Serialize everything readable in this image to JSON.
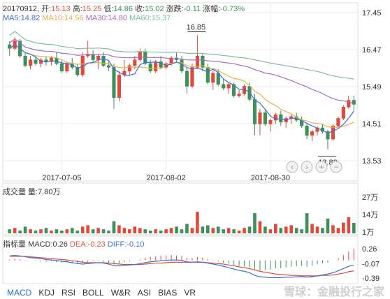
{
  "header": {
    "date": "20170912,",
    "open_label": "开:",
    "open": "15.13",
    "high_label": "高:",
    "high": "15.25",
    "low_label": "低:",
    "low": "14.86",
    "close_label": "收:",
    "close": "15.02",
    "change_label": "涨跌:",
    "change": "-0.11",
    "pct_label": "涨幅:",
    "pct": "-0.73%"
  },
  "ma_legend": {
    "ma5": "MA5:14.82",
    "ma10": "MA10:14.56",
    "ma30": "MA30:14.80",
    "ma60": "MA60:15.37"
  },
  "volume_panel": {
    "label": "成交量 量:7.80万"
  },
  "macd_panel": {
    "label": "指标量",
    "macd": "MACD:0.26",
    "dea": "DEA:-0.23",
    "diff": "DIFF:-0.10"
  },
  "tabs": [
    "MACD",
    "KDJ",
    "RSI",
    "BOLL",
    "W&R",
    "ASI",
    "BIAS",
    "VR"
  ],
  "active_tab": "MACD",
  "watermark": "雪球：金融投行之家",
  "colors": {
    "up": "#e04a3a",
    "down": "#3f8f5a",
    "ma5": "#3b6fd6",
    "ma10": "#e8b04a",
    "ma30": "#a36bc9",
    "ma60": "#7fbfa0",
    "info": "#e0503c"
  },
  "chart_data": [
    {
      "type": "candlestick",
      "x_tick_labels": [
        "2017-07-05",
        "2017-08-02",
        "2017-08-30"
      ],
      "y_tick_labels": [
        "17.45",
        "16.47",
        "15.49",
        "14.51",
        "13.53"
      ],
      "ylim": [
        13.53,
        17.45
      ],
      "annotations": {
        "max": "16.85",
        "min": "13.83"
      },
      "candles": [
        [
          16.6,
          16.7,
          16.3,
          16.5
        ],
        [
          16.5,
          16.8,
          16.45,
          16.7
        ],
        [
          16.7,
          16.75,
          16.25,
          16.3
        ],
        [
          16.3,
          16.4,
          16.0,
          16.05
        ],
        [
          16.05,
          16.3,
          15.95,
          16.2
        ],
        [
          16.2,
          16.3,
          16.05,
          16.1
        ],
        [
          16.1,
          16.25,
          16.0,
          16.2
        ],
        [
          16.2,
          16.3,
          16.05,
          16.15
        ],
        [
          16.15,
          16.3,
          16.05,
          16.25
        ],
        [
          16.25,
          16.4,
          16.05,
          16.1
        ],
        [
          16.1,
          16.2,
          15.85,
          15.9
        ],
        [
          15.9,
          16.15,
          15.85,
          16.1
        ],
        [
          16.1,
          16.25,
          15.95,
          16.0
        ],
        [
          16.0,
          16.1,
          15.75,
          15.8
        ],
        [
          15.8,
          16.4,
          15.75,
          16.3
        ],
        [
          16.3,
          16.7,
          16.25,
          16.35
        ],
        [
          16.35,
          16.45,
          16.15,
          16.2
        ],
        [
          16.2,
          16.35,
          15.95,
          16.3
        ],
        [
          16.3,
          16.4,
          16.0,
          16.05
        ],
        [
          16.05,
          16.15,
          15.9,
          16.0
        ],
        [
          16.0,
          16.1,
          14.9,
          15.2
        ],
        [
          15.2,
          15.9,
          15.1,
          15.8
        ],
        [
          15.8,
          16.2,
          15.75,
          15.9
        ],
        [
          15.9,
          16.1,
          15.8,
          16.05
        ],
        [
          16.05,
          16.3,
          15.95,
          16.2
        ],
        [
          16.2,
          16.5,
          16.15,
          16.4
        ],
        [
          16.4,
          16.5,
          16.05,
          16.1
        ],
        [
          16.1,
          16.2,
          15.85,
          15.9
        ],
        [
          15.9,
          16.2,
          15.85,
          16.15
        ],
        [
          16.15,
          16.3,
          15.95,
          16.0
        ],
        [
          16.0,
          16.15,
          15.95,
          16.1
        ],
        [
          16.1,
          16.3,
          16.05,
          16.25
        ],
        [
          16.25,
          16.4,
          16.15,
          16.2
        ],
        [
          16.2,
          16.3,
          15.85,
          15.9
        ],
        [
          15.9,
          16.0,
          15.3,
          15.5
        ],
        [
          15.5,
          16.1,
          15.45,
          16.0
        ],
        [
          16.0,
          16.85,
          15.95,
          16.3
        ],
        [
          16.3,
          16.35,
          15.9,
          16.0
        ],
        [
          16.0,
          16.1,
          15.55,
          15.6
        ],
        [
          15.6,
          15.9,
          15.4,
          15.85
        ],
        [
          15.85,
          15.95,
          15.5,
          15.55
        ],
        [
          15.55,
          15.7,
          15.4,
          15.45
        ],
        [
          15.45,
          15.6,
          15.3,
          15.55
        ],
        [
          15.55,
          15.6,
          15.2,
          15.25
        ],
        [
          15.25,
          15.4,
          15.2,
          15.3
        ],
        [
          15.3,
          15.55,
          15.25,
          15.5
        ],
        [
          15.5,
          15.6,
          15.1,
          15.15
        ],
        [
          15.15,
          15.3,
          14.2,
          14.5
        ],
        [
          14.5,
          14.9,
          14.2,
          14.8
        ],
        [
          14.8,
          14.9,
          14.45,
          14.5
        ],
        [
          14.5,
          14.65,
          14.3,
          14.6
        ],
        [
          14.6,
          14.8,
          14.5,
          14.75
        ],
        [
          14.75,
          14.85,
          14.45,
          14.55
        ],
        [
          14.55,
          14.7,
          14.4,
          14.65
        ],
        [
          14.65,
          14.75,
          14.5,
          14.7
        ],
        [
          14.7,
          14.8,
          14.55,
          14.6
        ],
        [
          14.6,
          14.7,
          14.4,
          14.45
        ],
        [
          14.45,
          14.5,
          14.1,
          14.2
        ],
        [
          14.2,
          14.35,
          14.05,
          14.3
        ],
        [
          14.3,
          14.45,
          14.2,
          14.4
        ],
        [
          14.4,
          14.5,
          14.25,
          14.3
        ],
        [
          14.3,
          14.35,
          13.83,
          14.1
        ],
        [
          14.1,
          14.5,
          14.05,
          14.45
        ],
        [
          14.45,
          14.7,
          14.4,
          14.65
        ],
        [
          14.65,
          15.0,
          14.6,
          14.95
        ],
        [
          14.95,
          15.25,
          14.9,
          15.13
        ],
        [
          15.13,
          15.25,
          14.86,
          15.02
        ]
      ]
    },
    {
      "type": "bar",
      "title": "volume",
      "y_tick_labels": [
        "27万",
        "14万",
        "1万"
      ],
      "ylim": [
        0,
        27
      ],
      "values": [
        3,
        4,
        2,
        5,
        3,
        2,
        3,
        4,
        2,
        3,
        2,
        3,
        4,
        2,
        5,
        6,
        3,
        4,
        3,
        2,
        9,
        6,
        4,
        3,
        5,
        4,
        3,
        2,
        3,
        2,
        3,
        4,
        5,
        3,
        7,
        4,
        16,
        5,
        6,
        4,
        5,
        3,
        4,
        3,
        2,
        4,
        5,
        15,
        9,
        5,
        3,
        7,
        4,
        5,
        6,
        4,
        3,
        15,
        7,
        5,
        4,
        11,
        6,
        4,
        8,
        12,
        7.8
      ],
      "colors_up": true
    },
    {
      "type": "bar",
      "title": "MACD",
      "y_tick_labels": [
        "0.26",
        "-0.07",
        "-0.39"
      ],
      "ylim": [
        -0.45,
        0.32
      ],
      "values": [
        0.02,
        0.04,
        0.03,
        0.01,
        0.0,
        -0.01,
        -0.02,
        -0.03,
        -0.02,
        -0.04,
        -0.05,
        -0.04,
        -0.06,
        -0.07,
        -0.05,
        -0.03,
        -0.02,
        -0.01,
        -0.03,
        -0.05,
        -0.09,
        -0.06,
        -0.04,
        -0.02,
        0.0,
        0.03,
        0.06,
        0.08,
        0.09,
        0.1,
        0.11,
        0.12,
        0.11,
        0.1,
        0.06,
        0.05,
        0.08,
        0.06,
        0.03,
        0.01,
        -0.02,
        -0.05,
        -0.07,
        -0.1,
        -0.12,
        -0.13,
        -0.15,
        -0.2,
        -0.22,
        -0.21,
        -0.2,
        -0.18,
        -0.17,
        -0.15,
        -0.14,
        -0.13,
        -0.12,
        -0.14,
        -0.11,
        -0.08,
        -0.06,
        -0.05,
        0.0,
        0.05,
        0.12,
        0.2,
        0.26
      ],
      "diff": [
        0.1,
        0.11,
        0.1,
        0.08,
        0.06,
        0.05,
        0.04,
        0.02,
        0.01,
        0.0,
        -0.02,
        -0.03,
        -0.05,
        -0.07,
        -0.08,
        -0.07,
        -0.06,
        -0.05,
        -0.06,
        -0.08,
        -0.12,
        -0.12,
        -0.11,
        -0.1,
        -0.09,
        -0.07,
        -0.05,
        -0.03,
        -0.02,
        -0.01,
        0.0,
        0.01,
        0.01,
        0.0,
        -0.03,
        -0.04,
        -0.03,
        -0.04,
        -0.06,
        -0.08,
        -0.1,
        -0.13,
        -0.16,
        -0.19,
        -0.22,
        -0.24,
        -0.27,
        -0.33,
        -0.36,
        -0.37,
        -0.38,
        -0.38,
        -0.38,
        -0.37,
        -0.37,
        -0.36,
        -0.36,
        -0.37,
        -0.36,
        -0.34,
        -0.32,
        -0.3,
        -0.27,
        -0.23,
        -0.18,
        -0.13,
        -0.1
      ],
      "dea": [
        0.09,
        0.09,
        0.09,
        0.09,
        0.08,
        0.07,
        0.06,
        0.05,
        0.04,
        0.03,
        0.02,
        0.01,
        -0.01,
        -0.02,
        -0.04,
        -0.05,
        -0.05,
        -0.05,
        -0.05,
        -0.06,
        -0.07,
        -0.08,
        -0.09,
        -0.09,
        -0.09,
        -0.09,
        -0.08,
        -0.07,
        -0.06,
        -0.06,
        -0.05,
        -0.04,
        -0.04,
        -0.04,
        -0.04,
        -0.04,
        -0.04,
        -0.04,
        -0.05,
        -0.06,
        -0.07,
        -0.08,
        -0.1,
        -0.12,
        -0.14,
        -0.16,
        -0.18,
        -0.21,
        -0.24,
        -0.26,
        -0.28,
        -0.3,
        -0.31,
        -0.32,
        -0.33,
        -0.33,
        -0.34,
        -0.34,
        -0.34,
        -0.34,
        -0.33,
        -0.33,
        -0.32,
        -0.3,
        -0.28,
        -0.25,
        -0.23
      ]
    }
  ]
}
